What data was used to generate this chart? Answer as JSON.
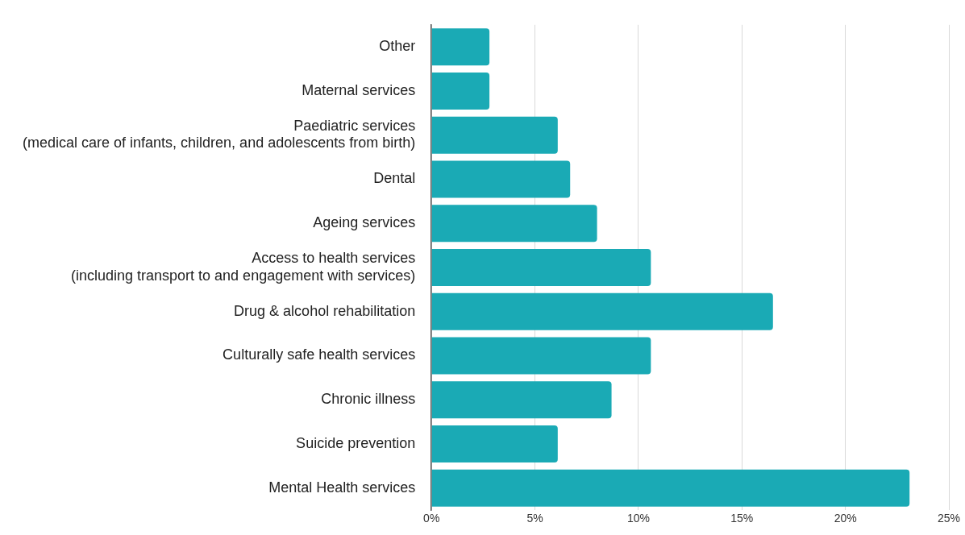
{
  "chart_data": {
    "type": "bar",
    "orientation": "horizontal",
    "categories": [
      "Other",
      "Maternal services",
      "Paediatric services\n(medical care of infants, children, and adolescents from birth)",
      "Dental",
      "Ageing services",
      "Access to health services\n(including transport to and engagement with services)",
      "Drug & alcohol rehabilitation",
      "Culturally safe health services",
      "Chronic illness",
      "Suicide prevention",
      "Mental Health services"
    ],
    "values": [
      2.8,
      2.8,
      6.1,
      6.7,
      8.0,
      10.6,
      16.5,
      10.6,
      8.7,
      6.1,
      23.1
    ],
    "color": "#1aaab5",
    "xlim": [
      0,
      25
    ],
    "xticks": [
      {
        "value": 0,
        "label": "0%"
      },
      {
        "value": 5,
        "label": "5%"
      },
      {
        "value": 10,
        "label": "10%"
      },
      {
        "value": 15,
        "label": "15%"
      },
      {
        "value": 20,
        "label": "20%"
      },
      {
        "value": 25,
        "label": "25%"
      }
    ],
    "grid": "x",
    "legend": false
  }
}
